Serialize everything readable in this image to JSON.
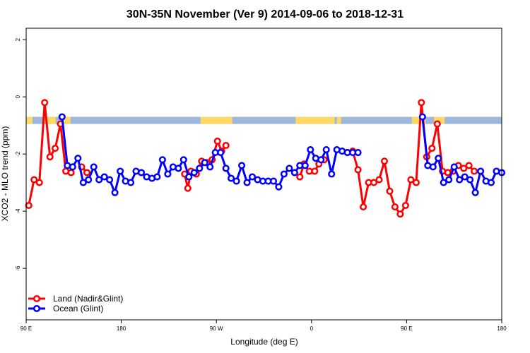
{
  "chart_data": {
    "type": "line",
    "title": "30N-35N November (Ver 9)   2014-09-06 to 2018-12-31",
    "xlabel": "Longitude (deg E)",
    "ylabel": "XCO2 - MLO trend (ppm)",
    "xlim": [
      90,
      540
    ],
    "ylim": [
      -7.8,
      2.4
    ],
    "x_ticks": [
      {
        "value": 90,
        "label": "90 E"
      },
      {
        "value": 180,
        "label": "180"
      },
      {
        "value": 270,
        "label": "90 W"
      },
      {
        "value": 360,
        "label": "0"
      },
      {
        "value": 450,
        "label": "90 E"
      },
      {
        "value": 540,
        "label": "180"
      }
    ],
    "y_ticks": [
      {
        "value": 2,
        "label": "2"
      },
      {
        "value": 0,
        "label": "0"
      },
      {
        "value": -2,
        "label": "-2"
      },
      {
        "value": -4,
        "label": "-4"
      },
      {
        "value": -6,
        "label": "-6"
      }
    ],
    "legend_position": "bottom-left",
    "series": [
      {
        "name": "Land (Nadir&Glint)",
        "color": "#ff0000",
        "segments": [
          {
            "x": [
              92.5,
              97.5,
              102.5,
              107.5,
              112.5,
              117.5,
              122.5,
              127.5,
              132.5
            ],
            "y": [
              -3.8,
              -2.9,
              -3.0,
              -0.2,
              -2.1,
              -1.8,
              -0.95,
              -2.6,
              -2.65
            ]
          },
          {
            "x": [
              142.5,
              147.5
            ],
            "y": [
              -2.45,
              -2.65
            ]
          },
          {
            "x": [
              240,
              243,
              246,
              251,
              256,
              261,
              266,
              271,
              275,
              279
            ],
            "y": [
              -2.7,
              -3.2,
              -2.6,
              -2.7,
              -2.25,
              -2.3,
              -2.2,
              -1.55,
              -1.9,
              -1.7
            ]
          },
          {
            "x": [
              349,
              353,
              358,
              363,
              367,
              372
            ],
            "y": [
              -2.8,
              -2.35,
              -2.6,
              -2.6,
              -2.35,
              -2.2
            ]
          },
          {
            "x": [
              394,
              399,
              404,
              409,
              414,
              419,
              424,
              429,
              434,
              439,
              444,
              449,
              454,
              459,
              464,
              469,
              474,
              479,
              484,
              489,
              494,
              499,
              504,
              509,
              514
            ],
            "y": [
              -1.95,
              -1.9,
              -2.55,
              -3.85,
              -3.0,
              -3.0,
              -2.9,
              -2.25,
              -3.3,
              -3.85,
              -4.1,
              -3.8,
              -2.9,
              -3.0,
              -0.2,
              -2.1,
              -1.8,
              -0.95,
              -2.6,
              -2.65,
              -2.6,
              -2.4,
              -2.5,
              -2.4,
              -2.6
            ]
          }
        ]
      },
      {
        "name": "Ocean (Glint)",
        "color": "#0000ff",
        "segments": [
          {
            "x": [
              124,
              129,
              134,
              139,
              144,
              149,
              154,
              159,
              164,
              169,
              174,
              179,
              184,
              189,
              194,
              199,
              204,
              209,
              214,
              219,
              224,
              229,
              234,
              239,
              244,
              249,
              254,
              259,
              264,
              269,
              274,
              279,
              284,
              289,
              294,
              299,
              304,
              309,
              314,
              319,
              324,
              329,
              334,
              339,
              344,
              349,
              354,
              359,
              364,
              369,
              374,
              379,
              384,
              389,
              394,
              399,
              404
            ],
            "y": [
              -0.7,
              -2.4,
              -2.45,
              -2.15,
              -3.0,
              -2.9,
              -2.45,
              -2.9,
              -2.8,
              -2.9,
              -3.35,
              -2.6,
              -2.95,
              -3.0,
              -2.6,
              -2.65,
              -2.8,
              -2.85,
              -2.8,
              -2.2,
              -2.7,
              -2.45,
              -2.5,
              -2.2,
              -2.8,
              -2.65,
              -2.5,
              -2.3,
              -2.45,
              -1.95,
              -1.95,
              -2.5,
              -2.85,
              -2.95,
              -2.4,
              -3.0,
              -2.8,
              -2.9,
              -2.95,
              -2.95,
              -2.95,
              -3.15,
              -2.7,
              -2.5,
              -2.65,
              -2.4,
              -2.4,
              -1.85,
              -2.15,
              -2.2,
              -1.85,
              -2.7,
              -1.85,
              -1.9,
              -1.95,
              -1.95,
              -1.95
            ]
          },
          {
            "x": [
              465,
              470,
              475,
              480,
              485,
              490,
              495,
              500,
              505,
              510,
              515,
              520,
              525,
              530,
              535,
              540
            ],
            "y": [
              -0.7,
              -2.4,
              -2.45,
              -2.15,
              -3.0,
              -2.9,
              -2.45,
              -2.9,
              -2.8,
              -2.9,
              -3.35,
              -2.6,
              -2.95,
              -3.0,
              -2.6,
              -2.65
            ]
          }
        ]
      }
    ],
    "land_ocean_strip": {
      "y_range": [
        -0.95,
        -0.7
      ],
      "land_color": "#ffd966",
      "ocean_color": "#9fb7dd",
      "land_spans": [
        [
          90,
          96
        ],
        [
          106,
          118
        ],
        [
          124,
          132
        ],
        [
          255,
          285
        ],
        [
          345,
          382
        ],
        [
          384,
          388
        ],
        [
          455,
          468
        ],
        [
          476,
          486
        ]
      ]
    }
  }
}
